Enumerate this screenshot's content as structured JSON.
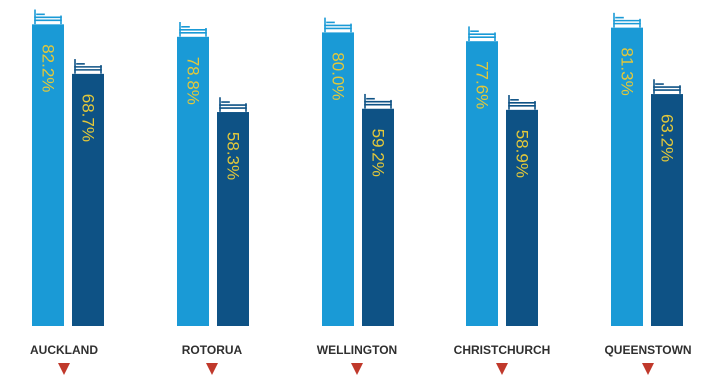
{
  "chart_data": {
    "type": "bar",
    "categories": [
      "AUCKLAND",
      "ROTORUA",
      "WELLINGTON",
      "CHRISTCHURCH",
      "QUEENSTOWN"
    ],
    "series": [
      {
        "values": [
          82.2,
          78.8,
          80.0,
          77.6,
          81.3
        ],
        "color": "#1a9ad6"
      },
      {
        "values": [
          68.7,
          58.3,
          59.2,
          58.9,
          63.2
        ],
        "color": "#0e5285"
      }
    ],
    "value_labels": [
      [
        "82.2%",
        "68.7%"
      ],
      [
        "78.8%",
        "58.3%"
      ],
      [
        "80.0%",
        "59.2%"
      ],
      [
        "77.6%",
        "58.9%"
      ],
      [
        "81.3%",
        "63.2%"
      ]
    ],
    "value_label_color": "#e3c83a",
    "category_label_color": "#2f2f2f",
    "marker_color": "#c0392b",
    "bar_icon": "bed-icon",
    "category_marker_icon": "down-triangle-icon",
    "ylim": [
      0,
      100
    ],
    "grid": false,
    "legend": "none"
  }
}
